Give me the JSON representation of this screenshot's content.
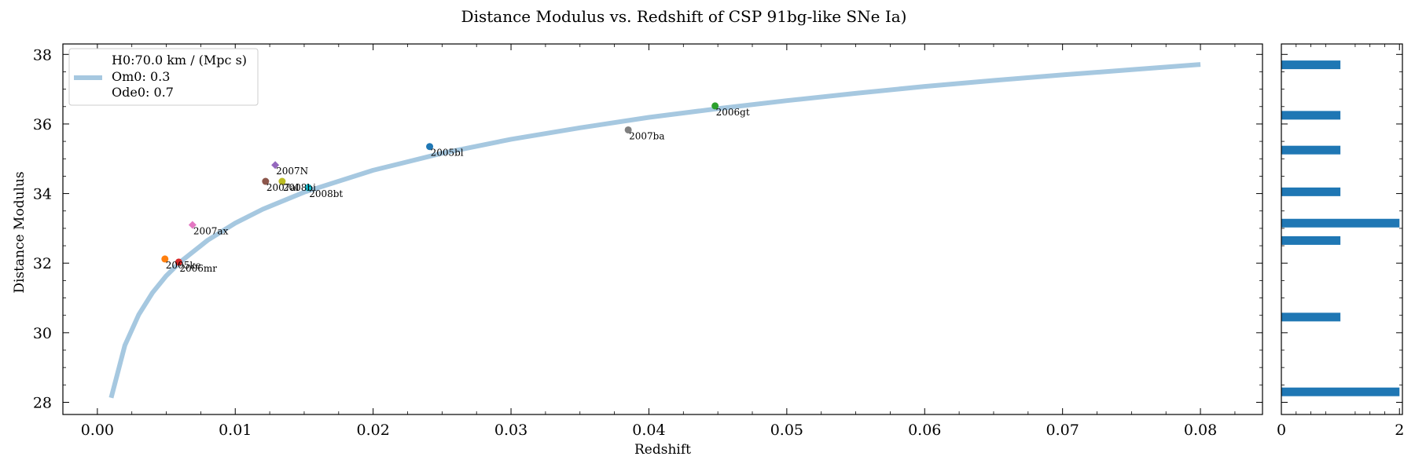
{
  "chart_data": [
    {
      "type": "scatter",
      "title": "Distance Modulus vs. Redshift of CSP 91bg-like SNe Ia)",
      "xlabel": "Redshift",
      "ylabel": "Distance Modulus",
      "xlim": [
        -0.0025,
        0.0845
      ],
      "ylim": [
        27.65,
        38.3
      ],
      "x_ticks": [
        "0.00",
        "0.01",
        "0.02",
        "0.03",
        "0.04",
        "0.05",
        "0.06",
        "0.07",
        "0.08"
      ],
      "y_ticks": [
        "28",
        "30",
        "32",
        "34",
        "36",
        "38"
      ],
      "legend": {
        "position": "top-left",
        "lines": [
          "H0:70.0 km / (Mpc s)",
          "Om0: 0.3",
          "Ode0: 0.7"
        ],
        "color": "#a6c8e0"
      },
      "model_curve": {
        "color": "#a6c8e0",
        "x": [
          0.001,
          0.002,
          0.003,
          0.004,
          0.005,
          0.006,
          0.008,
          0.01,
          0.012,
          0.015,
          0.02,
          0.025,
          0.03,
          0.035,
          0.04,
          0.045,
          0.05,
          0.055,
          0.06,
          0.065,
          0.07,
          0.075,
          0.08
        ],
        "y": [
          28.13,
          29.64,
          30.52,
          31.15,
          31.64,
          32.03,
          32.66,
          33.15,
          33.55,
          34.04,
          34.67,
          35.16,
          35.56,
          35.89,
          36.19,
          36.44,
          36.67,
          36.88,
          37.08,
          37.25,
          37.41,
          37.56,
          37.71
        ]
      },
      "points": [
        {
          "name": "2005ke",
          "x": 0.0049,
          "y": 32.12,
          "color": "#ff7f0e",
          "marker": "circle"
        },
        {
          "name": "2006mr",
          "x": 0.0059,
          "y": 32.03,
          "color": "#d62728",
          "marker": "circle"
        },
        {
          "name": "2007ax",
          "x": 0.0069,
          "y": 33.1,
          "color": "#e377c2",
          "marker": "diamond"
        },
        {
          "name": "2007al",
          "x": 0.0122,
          "y": 34.35,
          "color": "#8c564b",
          "marker": "circle"
        },
        {
          "name": "2007N",
          "x": 0.0129,
          "y": 34.82,
          "color": "#9467bd",
          "marker": "diamond"
        },
        {
          "name": "2008bi",
          "x": 0.0134,
          "y": 34.35,
          "color": "#bcbd22",
          "marker": "circle"
        },
        {
          "name": "2008bt",
          "x": 0.0153,
          "y": 34.17,
          "color": "#17becf",
          "marker": "circle"
        },
        {
          "name": "2005bl",
          "x": 0.0241,
          "y": 35.35,
          "color": "#1f77b4",
          "marker": "circle"
        },
        {
          "name": "2007ba",
          "x": 0.0385,
          "y": 35.83,
          "color": "#7f7f7f",
          "marker": "circle"
        },
        {
          "name": "2006gt",
          "x": 0.0448,
          "y": 36.52,
          "color": "#2ca02c",
          "marker": "circle"
        }
      ]
    },
    {
      "type": "bar",
      "orientation": "horizontal",
      "x_ticks": [
        "0",
        "2"
      ],
      "xlim": [
        0,
        2.05
      ],
      "ylim": [
        27.65,
        38.3
      ],
      "color": "#1f77b4",
      "bars": [
        {
          "y": 28.3,
          "value": 2
        },
        {
          "y": 30.45,
          "value": 1
        },
        {
          "y": 32.65,
          "value": 1
        },
        {
          "y": 33.15,
          "value": 2
        },
        {
          "y": 34.05,
          "value": 1
        },
        {
          "y": 35.25,
          "value": 1
        },
        {
          "y": 36.25,
          "value": 1
        },
        {
          "y": 37.7,
          "value": 1
        }
      ]
    }
  ]
}
